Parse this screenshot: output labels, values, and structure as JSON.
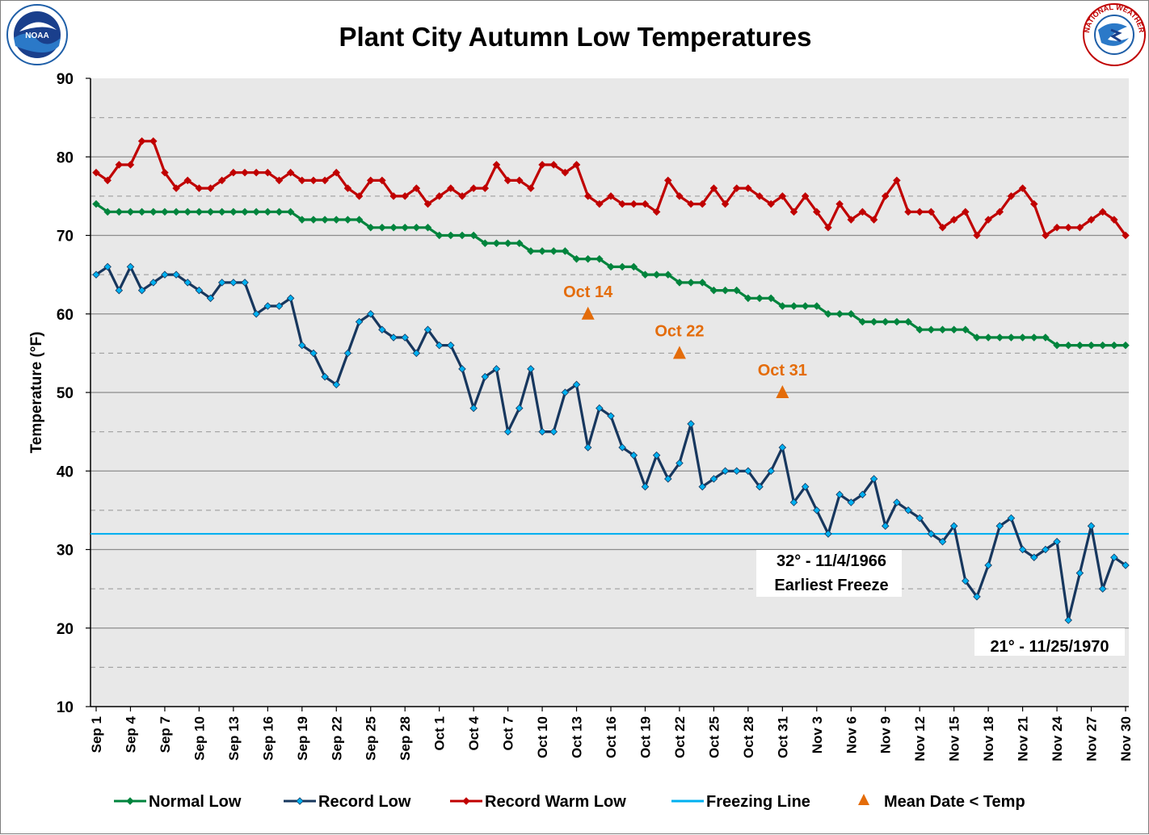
{
  "colors": {
    "normal": "#00843d",
    "record": "#17375e",
    "record_marker": "#00b0f0",
    "warm": "#c00000",
    "freeze": "#00b0f0",
    "mean": "#e46c0a",
    "plot_bg": "#e8e8e8"
  },
  "logos": {
    "noaa": {
      "icon": "noaa-logo",
      "text": "NOAA"
    },
    "nws": {
      "icon": "nws-logo",
      "text": "NATIONAL WEATHER SERVICE"
    }
  },
  "chart_data": {
    "type": "line",
    "title": "Plant City Autumn Low Temperatures",
    "xlabel": "",
    "ylabel": "Temperature (°F)",
    "ylim": [
      10,
      90
    ],
    "yticks": [
      10,
      20,
      30,
      40,
      50,
      60,
      70,
      80,
      90
    ],
    "grid": true,
    "x_days": 91,
    "x": [
      "Sep 1",
      "Sep 2",
      "Sep 3",
      "Sep 4",
      "Sep 5",
      "Sep 6",
      "Sep 7",
      "Sep 8",
      "Sep 9",
      "Sep 10",
      "Sep 11",
      "Sep 12",
      "Sep 13",
      "Sep 14",
      "Sep 15",
      "Sep 16",
      "Sep 17",
      "Sep 18",
      "Sep 19",
      "Sep 20",
      "Sep 21",
      "Sep 22",
      "Sep 23",
      "Sep 24",
      "Sep 25",
      "Sep 26",
      "Sep 27",
      "Sep 28",
      "Sep 29",
      "Sep 30",
      "Oct 1",
      "Oct 2",
      "Oct 3",
      "Oct 4",
      "Oct 5",
      "Oct 6",
      "Oct 7",
      "Oct 8",
      "Oct 9",
      "Oct 10",
      "Oct 11",
      "Oct 12",
      "Oct 13",
      "Oct 14",
      "Oct 15",
      "Oct 16",
      "Oct 17",
      "Oct 18",
      "Oct 19",
      "Oct 20",
      "Oct 21",
      "Oct 22",
      "Oct 23",
      "Oct 24",
      "Oct 25",
      "Oct 26",
      "Oct 27",
      "Oct 28",
      "Oct 29",
      "Oct 30",
      "Oct 31",
      "Nov 1",
      "Nov 2",
      "Nov 3",
      "Nov 4",
      "Nov 5",
      "Nov 6",
      "Nov 7",
      "Nov 8",
      "Nov 9",
      "Nov 10",
      "Nov 11",
      "Nov 12",
      "Nov 13",
      "Nov 14",
      "Nov 15",
      "Nov 16",
      "Nov 17",
      "Nov 18",
      "Nov 19",
      "Nov 20",
      "Nov 21",
      "Nov 22",
      "Nov 23",
      "Nov 24",
      "Nov 25",
      "Nov 26",
      "Nov 27",
      "Nov 28",
      "Nov 29",
      "Nov 30"
    ],
    "xtick_labels": [
      "Sep 1",
      "Sep 4",
      "Sep 7",
      "Sep 10",
      "Sep 13",
      "Sep 16",
      "Sep 19",
      "Sep 22",
      "Sep 25",
      "Sep 28",
      "Oct 1",
      "Oct 4",
      "Oct 7",
      "Oct 10",
      "Oct 13",
      "Oct 16",
      "Oct 19",
      "Oct 22",
      "Oct 25",
      "Oct 28",
      "Oct 31",
      "Nov 3",
      "Nov 6",
      "Nov 9",
      "Nov 12",
      "Nov 15",
      "Nov 18",
      "Nov 21",
      "Nov 24",
      "Nov 27",
      "Nov 30"
    ],
    "series": [
      {
        "name": "Normal Low",
        "key": "normal",
        "values": [
          74,
          73,
          73,
          73,
          73,
          73,
          73,
          73,
          73,
          73,
          73,
          73,
          73,
          73,
          73,
          73,
          73,
          73,
          72,
          72,
          72,
          72,
          72,
          72,
          71,
          71,
          71,
          71,
          71,
          71,
          70,
          70,
          70,
          70,
          69,
          69,
          69,
          69,
          68,
          68,
          68,
          68,
          67,
          67,
          67,
          66,
          66,
          66,
          65,
          65,
          65,
          64,
          64,
          64,
          63,
          63,
          63,
          62,
          62,
          62,
          61,
          61,
          61,
          61,
          60,
          60,
          60,
          59,
          59,
          59,
          59,
          59,
          58,
          58,
          58,
          58,
          58,
          57,
          57,
          57,
          57,
          57,
          57,
          57,
          56,
          56,
          56,
          56,
          56,
          56,
          56
        ]
      },
      {
        "name": "Record Low",
        "key": "record",
        "values": [
          65,
          66,
          63,
          66,
          63,
          64,
          65,
          65,
          64,
          63,
          62,
          64,
          64,
          64,
          60,
          61,
          61,
          62,
          56,
          55,
          52,
          51,
          55,
          59,
          60,
          58,
          57,
          57,
          55,
          58,
          56,
          56,
          53,
          48,
          52,
          53,
          45,
          48,
          53,
          45,
          45,
          50,
          51,
          43,
          48,
          47,
          43,
          42,
          38,
          42,
          39,
          41,
          46,
          38,
          39,
          40,
          40,
          40,
          38,
          40,
          43,
          36,
          38,
          35,
          32,
          37,
          36,
          37,
          39,
          33,
          36,
          35,
          34,
          32,
          31,
          33,
          26,
          24,
          28,
          33,
          34,
          30,
          29,
          30,
          31,
          21,
          27,
          33,
          25,
          29,
          28
        ]
      },
      {
        "name": "Record Warm Low",
        "key": "warm",
        "values": [
          78,
          77,
          79,
          79,
          82,
          82,
          78,
          76,
          77,
          76,
          76,
          77,
          78,
          78,
          78,
          78,
          77,
          78,
          77,
          77,
          77,
          78,
          76,
          75,
          77,
          77,
          75,
          75,
          76,
          74,
          75,
          76,
          75,
          76,
          76,
          79,
          77,
          77,
          76,
          79,
          79,
          78,
          79,
          75,
          74,
          75,
          74,
          74,
          74,
          73,
          77,
          75,
          74,
          74,
          76,
          74,
          76,
          76,
          75,
          74,
          75,
          73,
          75,
          73,
          71,
          74,
          72,
          73,
          72,
          75,
          77,
          73,
          73,
          73,
          71,
          72,
          73,
          70,
          72,
          73,
          75,
          76,
          74,
          70,
          71,
          71,
          71,
          72,
          73,
          72,
          70
        ]
      },
      {
        "name": "Freezing Line",
        "key": "freeze",
        "value": 32
      },
      {
        "name": "Mean Date < Temp",
        "key": "mean",
        "points": [
          {
            "label": "Oct 14",
            "day": 43,
            "value": 60
          },
          {
            "label": "Oct 22",
            "day": 51,
            "value": 55
          },
          {
            "label": "Oct 31",
            "day": 60,
            "value": 50
          }
        ]
      }
    ],
    "annotations": [
      {
        "lines": [
          "32° - 11/4/1966",
          "Earliest Freeze"
        ]
      },
      {
        "lines": [
          "21° - 11/25/1970"
        ]
      }
    ]
  }
}
